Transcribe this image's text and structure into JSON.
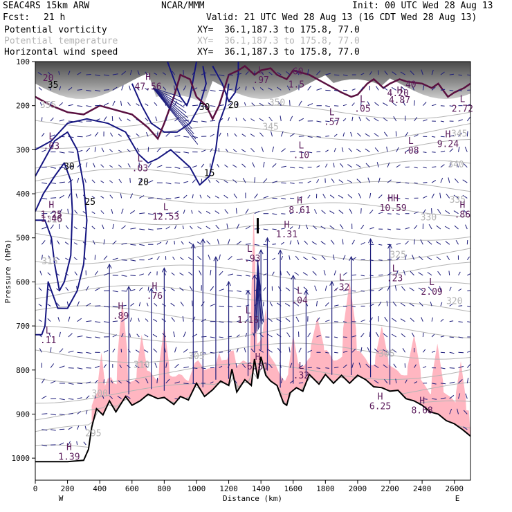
{
  "header": {
    "model": "SEAC4RS 15km ARW",
    "center": "NCAR/MMM",
    "init": "Init: 00 UTC Wed 28 Aug 13",
    "fcst_label": "Fcst:",
    "fcst_value": "21 h",
    "valid": "Valid: 21 UTC Wed 28 Aug 13 (16 CDT Wed 28 Aug 13)",
    "fields": [
      {
        "name": "Potential vorticity",
        "xy": "XY=  36.1,187.3 to 175.8, 77.0",
        "color": "#000000"
      },
      {
        "name": "Potential temperature",
        "xy": "XY=  36.1,187.3 to 175.8, 77.0",
        "color": "#b4b4b4"
      },
      {
        "name": "Horizontal wind speed",
        "xy": "XY=  36.1,187.3 to 175.8, 77.0",
        "color": "#000000"
      }
    ]
  },
  "colors": {
    "theta": "#b4b4b4",
    "wind": "#1c1c7a",
    "pv_contour": "#141480",
    "shading": "#ffb6c1",
    "terrain": "#000000",
    "tropopause": "#5a1040",
    "extrema": "#5a1a5a"
  },
  "chart_data": {
    "type": "cross-section",
    "xlabel": "Distance (km)",
    "ylabel": "Pressure (hPa)",
    "xlim": [
      0,
      2700
    ],
    "ylim": [
      1050,
      100
    ],
    "x_ticks": [
      0,
      200,
      400,
      600,
      800,
      1000,
      1200,
      1400,
      1600,
      1800,
      2000,
      2200,
      2400,
      2600
    ],
    "y_ticks": [
      100,
      200,
      300,
      400,
      500,
      600,
      700,
      800,
      900,
      1000
    ],
    "left_end": "W",
    "right_end": "E",
    "terrain": {
      "x": [
        0,
        100,
        200,
        300,
        330,
        350,
        380,
        420,
        460,
        500,
        560,
        600,
        650,
        700,
        760,
        800,
        860,
        900,
        950,
        1000,
        1050,
        1100,
        1150,
        1200,
        1220,
        1250,
        1300,
        1340,
        1360,
        1380,
        1400,
        1430,
        1460,
        1500,
        1540,
        1560,
        1580,
        1620,
        1660,
        1700,
        1760,
        1800,
        1850,
        1900,
        1950,
        2000,
        2050,
        2100,
        2150,
        2200,
        2250,
        2300,
        2350,
        2400,
        2450,
        2500,
        2550,
        2600,
        2650,
        2700
      ],
      "p": [
        1008,
        1008,
        1008,
        1005,
        980,
        930,
        888,
        902,
        870,
        895,
        860,
        880,
        870,
        855,
        865,
        862,
        878,
        860,
        868,
        830,
        860,
        845,
        825,
        835,
        798,
        850,
        822,
        835,
        775,
        820,
        770,
        812,
        825,
        835,
        875,
        880,
        852,
        840,
        848,
        810,
        832,
        810,
        830,
        812,
        830,
        812,
        822,
        838,
        840,
        848,
        846,
        865,
        870,
        880,
        895,
        900,
        915,
        922,
        935,
        950
      ]
    },
    "theta_labels": [
      {
        "x": 80,
        "p": 205,
        "text": "355"
      },
      {
        "x": 1500,
        "p": 200,
        "text": "350"
      },
      {
        "x": 1460,
        "p": 255,
        "text": "345"
      },
      {
        "x": 2630,
        "p": 270,
        "text": "345"
      },
      {
        "x": 2610,
        "p": 340,
        "text": "340"
      },
      {
        "x": 2620,
        "p": 420,
        "text": "335"
      },
      {
        "x": 2440,
        "p": 460,
        "text": "330"
      },
      {
        "x": 120,
        "p": 465,
        "text": "325"
      },
      {
        "x": 2250,
        "p": 545,
        "text": "325"
      },
      {
        "x": 90,
        "p": 560,
        "text": "315"
      },
      {
        "x": 2600,
        "p": 650,
        "text": "320"
      },
      {
        "x": 660,
        "p": 795,
        "text": "310"
      },
      {
        "x": 1000,
        "p": 775,
        "text": "305"
      },
      {
        "x": 2180,
        "p": 770,
        "text": "305"
      },
      {
        "x": 400,
        "p": 860,
        "text": "300"
      },
      {
        "x": 360,
        "p": 950,
        "text": "295"
      }
    ],
    "pv_contour_labels": [
      {
        "x": 110,
        "p": 160,
        "text": "35"
      },
      {
        "x": 1050,
        "p": 210,
        "text": "30"
      },
      {
        "x": 1230,
        "p": 205,
        "text": "20"
      },
      {
        "x": 210,
        "p": 345,
        "text": "30"
      },
      {
        "x": 340,
        "p": 425,
        "text": "25"
      },
      {
        "x": 670,
        "p": 380,
        "text": "20"
      },
      {
        "x": 1080,
        "p": 360,
        "text": "15"
      }
    ],
    "extrema": [
      {
        "x": 80,
        "p": 125,
        "kind": "",
        "value": "20"
      },
      {
        "x": 1630,
        "p": 110,
        "kind": "",
        "value": "60"
      },
      {
        "x": 1400,
        "p": 130,
        "kind": "L",
        "value": ".97"
      },
      {
        "x": 1620,
        "p": 140,
        "kind": "",
        "value": "1.5"
      },
      {
        "x": 2330,
        "p": 140,
        "kind": "",
        "value": "40"
      },
      {
        "x": 700,
        "p": 145,
        "kind": "H",
        "value": "47.56"
      },
      {
        "x": 2250,
        "p": 160,
        "kind": "",
        "value": "4.20"
      },
      {
        "x": 2260,
        "p": 175,
        "kind": "H",
        "value": "4.87"
      },
      {
        "x": 2030,
        "p": 195,
        "kind": "L",
        "value": ".05"
      },
      {
        "x": 2650,
        "p": 195,
        "kind": "L",
        "value": "2.72"
      },
      {
        "x": 1840,
        "p": 225,
        "kind": "L",
        "value": ".57"
      },
      {
        "x": 100,
        "p": 280,
        "kind": "L",
        "value": ".03"
      },
      {
        "x": 2560,
        "p": 275,
        "kind": "H",
        "value": "9.24"
      },
      {
        "x": 2330,
        "p": 290,
        "kind": "L",
        "value": ".08"
      },
      {
        "x": 1650,
        "p": 300,
        "kind": "L",
        "value": ".10"
      },
      {
        "x": 650,
        "p": 330,
        "kind": "L",
        "value": ".03"
      },
      {
        "x": 2220,
        "p": 420,
        "kind": "HH",
        "value": "10.59"
      },
      {
        "x": 1640,
        "p": 425,
        "kind": "H",
        "value": "8.61"
      },
      {
        "x": 100,
        "p": 435,
        "kind": "H",
        "value": "1.25"
      },
      {
        "x": 2650,
        "p": 435,
        "kind": "H",
        "value": ".86"
      },
      {
        "x": 100,
        "p": 445,
        "kind": "",
        "value": "1.46"
      },
      {
        "x": 810,
        "p": 440,
        "kind": "L",
        "value": "12.53"
      },
      {
        "x": 1560,
        "p": 480,
        "kind": "H",
        "value": "1.31"
      },
      {
        "x": 1330,
        "p": 535,
        "kind": "L",
        "value": "-.93"
      },
      {
        "x": 1900,
        "p": 600,
        "kind": "L",
        "value": ".32"
      },
      {
        "x": 2230,
        "p": 580,
        "kind": "L",
        "value": ".23"
      },
      {
        "x": 2460,
        "p": 610,
        "kind": "L",
        "value": "2.09"
      },
      {
        "x": 740,
        "p": 620,
        "kind": "H",
        "value": ".76"
      },
      {
        "x": 1640,
        "p": 630,
        "kind": "L",
        "value": ".04"
      },
      {
        "x": 530,
        "p": 665,
        "kind": "H",
        "value": ".89"
      },
      {
        "x": 1320,
        "p": 675,
        "kind": "L",
        "value": "1.16"
      },
      {
        "x": 80,
        "p": 720,
        "kind": "L",
        "value": ".11"
      },
      {
        "x": 1380,
        "p": 780,
        "kind": "H",
        "value": "6.81"
      },
      {
        "x": 1650,
        "p": 800,
        "kind": "L",
        "value": ".32"
      },
      {
        "x": 2140,
        "p": 870,
        "kind": "H",
        "value": "6.25"
      },
      {
        "x": 2400,
        "p": 880,
        "kind": "H",
        "value": "8.68"
      },
      {
        "x": 210,
        "p": 985,
        "kind": "H",
        "value": "1.39"
      }
    ]
  }
}
